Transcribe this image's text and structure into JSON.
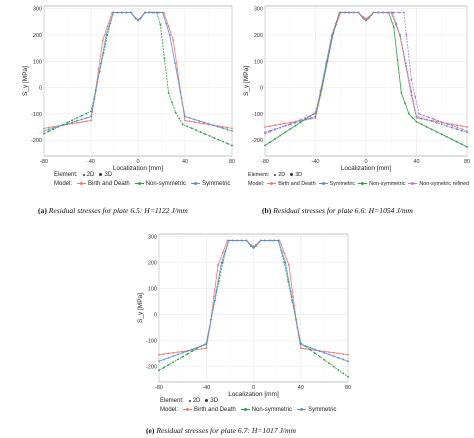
{
  "colors": {
    "birth_and_death": "#f8766d",
    "non_symmetric": "#2e9e45",
    "symmetric": "#5b8fd6",
    "non_symmetric_refined": "#b07ad6"
  },
  "panels": [
    {
      "caption_letter": "(a)",
      "caption_text": "Residual stresses for plate 6.5: H=1122 J/mm",
      "legend": {
        "element_title": "Element:",
        "element_items": [
          "2D",
          "3D"
        ],
        "model_title": "Model:",
        "model_items": [
          "Birth and Death",
          "Non-symmetric",
          "Symmetric"
        ]
      }
    },
    {
      "caption_letter": "(b)",
      "caption_text": "Residual stresses for plate 6.6: H=1054 J/mm",
      "legend": {
        "element_title": "Element:",
        "element_items": [
          "2D",
          "3D"
        ],
        "model_title": "Model:",
        "model_items": [
          "Birth and Death",
          "Symmetric",
          "Non-symmetric",
          "Non-symetric refined"
        ]
      }
    },
    {
      "caption_letter": "(e)",
      "caption_text": "Residual stresses for plate 6.7: H=1017 J/mm",
      "legend": {
        "element_title": "Element:",
        "element_items": [
          "2D",
          "3D"
        ],
        "model_title": "Model:",
        "model_items": [
          "Birth and Death",
          "Non-symmetric",
          "Symmetric"
        ]
      }
    }
  ],
  "chart_data": [
    {
      "type": "line",
      "xlabel": "Localization [mm]",
      "ylabel": "S_y [MPa]",
      "xlim": [
        -80,
        80
      ],
      "ylim": [
        -260,
        310
      ],
      "xticks": [
        "-80",
        "-40",
        "0",
        "40",
        "80"
      ],
      "yticks": [
        "-200",
        "-100",
        "0",
        "100",
        "200",
        "300"
      ],
      "grid": true,
      "series": [
        {
          "name": "Birth and Death",
          "color": "#f8766d",
          "x": [
            -80,
            -40,
            -37,
            -30,
            -22,
            -6,
            -2,
            0,
            2,
            6,
            22,
            30,
            37,
            40,
            80
          ],
          "y": [
            -155,
            -125,
            -40,
            180,
            285,
            285,
            265,
            258,
            265,
            285,
            285,
            180,
            -40,
            -125,
            -155
          ]
        },
        {
          "name": "Non-symmetric",
          "color": "#2e9e45",
          "x": [
            -80,
            -40,
            -36,
            -26,
            -21,
            -6,
            -2,
            0,
            2,
            6,
            16,
            19,
            26,
            32,
            38,
            80
          ],
          "y": [
            -175,
            -90,
            -10,
            200,
            285,
            285,
            262,
            255,
            262,
            285,
            285,
            240,
            -20,
            -95,
            -140,
            -220
          ]
        },
        {
          "name": "Symmetric",
          "color": "#5b8fd6",
          "x": [
            -80,
            -40,
            -36,
            -27,
            -21,
            -6,
            -2,
            0,
            2,
            6,
            21,
            27,
            36,
            40,
            80
          ],
          "y": [
            -165,
            -110,
            -15,
            200,
            285,
            285,
            262,
            256,
            262,
            285,
            285,
            200,
            -15,
            -110,
            -165
          ]
        }
      ]
    },
    {
      "type": "line",
      "xlabel": "Localization [mm]",
      "ylabel": "S_y [MPa]",
      "xlim": [
        -80,
        80
      ],
      "ylim": [
        -260,
        310
      ],
      "xticks": [
        "-80",
        "-40",
        "0",
        "40",
        "80"
      ],
      "yticks": [
        "-200",
        "-100",
        "0",
        "100",
        "200",
        "300"
      ],
      "grid": true,
      "series": [
        {
          "name": "Birth and Death",
          "color": "#f8766d",
          "x": [
            -80,
            -40,
            -36,
            -27,
            -20,
            -6,
            -2,
            0,
            2,
            6,
            20,
            27,
            36,
            40,
            80
          ],
          "y": [
            -150,
            -115,
            -30,
            195,
            285,
            285,
            268,
            262,
            268,
            285,
            285,
            195,
            -30,
            -115,
            -150
          ]
        },
        {
          "name": "Symmetric",
          "color": "#5b8fd6",
          "x": [
            -80,
            -40,
            -36,
            -27,
            -21,
            -6,
            -2,
            0,
            2,
            6,
            21,
            27,
            36,
            40,
            80
          ],
          "y": [
            -170,
            -110,
            -15,
            200,
            285,
            285,
            264,
            257,
            264,
            285,
            285,
            200,
            -15,
            -110,
            -170
          ]
        },
        {
          "name": "Non-symmetric",
          "color": "#2e9e45",
          "x": [
            -80,
            -40,
            -35,
            -26,
            -21,
            -6,
            -2,
            0,
            2,
            6,
            18,
            22,
            28,
            34,
            40,
            80
          ],
          "y": [
            -220,
            -95,
            -5,
            205,
            285,
            285,
            262,
            254,
            262,
            285,
            285,
            230,
            -20,
            -100,
            -130,
            -225
          ]
        },
        {
          "name": "Non-symetric refined",
          "color": "#b07ad6",
          "x": [
            -80,
            -40,
            -36,
            -27,
            -21,
            -6,
            -2,
            0,
            2,
            6,
            30,
            32,
            36,
            42,
            80
          ],
          "y": [
            -175,
            -100,
            -10,
            200,
            285,
            285,
            263,
            256,
            263,
            285,
            285,
            200,
            30,
            -100,
            -165
          ]
        }
      ]
    },
    {
      "type": "line",
      "xlabel": "Localization [mm]",
      "ylabel": "S_y [MPa]",
      "xlim": [
        -80,
        80
      ],
      "ylim": [
        -260,
        310
      ],
      "xticks": [
        "-80",
        "-40",
        "0",
        "40",
        "80"
      ],
      "yticks": [
        "-200",
        "-100",
        "0",
        "100",
        "200",
        "300"
      ],
      "grid": true,
      "series": [
        {
          "name": "Birth and Death",
          "color": "#f8766d",
          "x": [
            -80,
            -40,
            -37,
            -30,
            -22,
            -6,
            -2,
            0,
            2,
            6,
            22,
            30,
            37,
            40,
            80
          ],
          "y": [
            -155,
            -130,
            -50,
            190,
            285,
            285,
            268,
            262,
            268,
            285,
            285,
            190,
            -50,
            -130,
            -155
          ]
        },
        {
          "name": "Non-symmetric",
          "color": "#2e9e45",
          "x": [
            -80,
            -40,
            -36,
            -26,
            -21,
            -6,
            -2,
            0,
            2,
            6,
            21,
            26,
            36,
            40,
            80
          ],
          "y": [
            -215,
            -110,
            -20,
            200,
            285,
            285,
            263,
            256,
            263,
            285,
            285,
            200,
            -20,
            -110,
            -240
          ]
        },
        {
          "name": "Symmetric",
          "color": "#5b8fd6",
          "x": [
            -80,
            -40,
            -36,
            -27,
            -21,
            -6,
            -2,
            0,
            2,
            6,
            21,
            27,
            36,
            40,
            80
          ],
          "y": [
            -180,
            -115,
            -20,
            200,
            285,
            285,
            264,
            258,
            264,
            285,
            285,
            200,
            -20,
            -115,
            -180
          ]
        }
      ]
    }
  ]
}
